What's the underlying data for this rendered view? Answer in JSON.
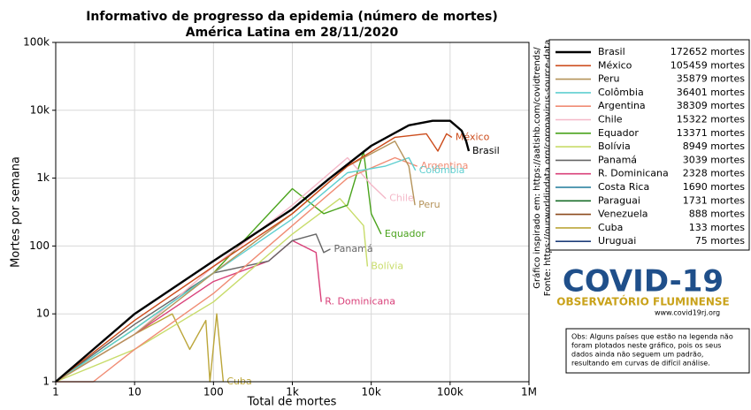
{
  "chart_data": {
    "type": "line",
    "title": "Informativo de progresso da epidemia (número de mortes)",
    "subtitle": "América Latina em 28/11/2020",
    "x_label": "Total de mortes",
    "y_label": "Mortes por semana",
    "log_x": true,
    "log_y": true,
    "grid": true,
    "xlim": [
      1,
      1000000
    ],
    "xticks": [
      1,
      10,
      100,
      {
        "value": 1000,
        "label": "1k"
      },
      {
        "value": 10000,
        "label": "10k"
      },
      {
        "value": 100000,
        "label": "100k"
      },
      {
        "value": 1000000,
        "label": "1M"
      }
    ],
    "ylim": [
      1,
      100000
    ],
    "yticks": [
      1,
      10,
      100,
      {
        "value": 1000,
        "label": "1k"
      },
      {
        "value": 10000,
        "label": "10k"
      },
      {
        "value": 100000,
        "label": "100k"
      }
    ],
    "series": [
      {
        "name": "Brasil",
        "total": "172652 mortes",
        "color": "#000000",
        "width": 2.4,
        "x": [
          1,
          10,
          100,
          1000,
          3000,
          10000,
          30000,
          60000,
          100000,
          140000,
          160000,
          172652
        ],
        "values": [
          1,
          10,
          60,
          350,
          1000,
          3000,
          6000,
          7000,
          7000,
          5000,
          3500,
          2500
        ]
      },
      {
        "name": "México",
        "total": "105459 mortes",
        "color": "#cc4c1c",
        "x": [
          1,
          10,
          100,
          1000,
          5000,
          20000,
          50000,
          70000,
          90000,
          105459
        ],
        "values": [
          1,
          8,
          50,
          300,
          1500,
          4000,
          4500,
          2500,
          4500,
          4000
        ]
      },
      {
        "name": "Peru",
        "total": "35879 mortes",
        "color": "#b5935a",
        "x": [
          1,
          10,
          100,
          1000,
          5000,
          20000,
          30000,
          35879
        ],
        "values": [
          1,
          5,
          40,
          300,
          1500,
          3500,
          1500,
          400
        ]
      },
      {
        "name": "Colômbia",
        "total": "36401 mortes",
        "color": "#5fcfd0",
        "x": [
          1,
          10,
          100,
          1000,
          5000,
          15000,
          30000,
          36401
        ],
        "values": [
          1,
          6,
          40,
          250,
          1200,
          1500,
          2000,
          1300
        ]
      },
      {
        "name": "Argentina",
        "total": "38309 mortes",
        "color": "#f08c74",
        "x": [
          1,
          3,
          10,
          100,
          1000,
          5000,
          20000,
          38309
        ],
        "values": [
          1,
          1,
          3,
          20,
          200,
          1000,
          2000,
          1500
        ]
      },
      {
        "name": "Chile",
        "total": "15322 mortes",
        "color": "#f4b8c8",
        "x": [
          1,
          10,
          100,
          1000,
          5000,
          10000,
          15322
        ],
        "values": [
          1,
          5,
          50,
          400,
          2000,
          800,
          500
        ]
      },
      {
        "name": "Equador",
        "total": "13371 mortes",
        "color": "#4aa31c",
        "x": [
          1,
          10,
          100,
          1000,
          2500,
          5000,
          8000,
          10000,
          13371
        ],
        "values": [
          1,
          6,
          40,
          700,
          300,
          400,
          2500,
          300,
          150
        ]
      },
      {
        "name": "Bolívia",
        "total": "8949 mortes",
        "color": "#c8dc6a",
        "x": [
          1,
          10,
          100,
          1000,
          4000,
          8000,
          8949
        ],
        "values": [
          1,
          3,
          15,
          150,
          500,
          200,
          50
        ]
      },
      {
        "name": "Panamá",
        "total": "3039 mortes",
        "color": "#666666",
        "x": [
          1,
          10,
          100,
          500,
          1000,
          2000,
          2500,
          3039
        ],
        "values": [
          1,
          7,
          40,
          60,
          120,
          150,
          80,
          90
        ]
      },
      {
        "name": "R. Dominicana",
        "total": "2328 mortes",
        "color": "#d9417a",
        "x": [
          1,
          10,
          100,
          500,
          1000,
          2000,
          2328
        ],
        "values": [
          1,
          5,
          30,
          60,
          120,
          80,
          15
        ]
      },
      {
        "name": "Costa Rica",
        "total": "1690 mortes",
        "color": "#1f7a9a"
      },
      {
        "name": "Paraguai",
        "total": "1731 mortes",
        "color": "#1a6e2a"
      },
      {
        "name": "Venezuela",
        "total": "888 mortes",
        "color": "#8b4a1c"
      },
      {
        "name": "Cuba",
        "total": "133 mortes",
        "color": "#bca63a",
        "x": [
          1,
          10,
          30,
          50,
          80,
          90,
          110,
          133
        ],
        "values": [
          1,
          5,
          10,
          3,
          8,
          1,
          10,
          1
        ]
      },
      {
        "name": "Uruguai",
        "total": "75 mortes",
        "color": "#1f3e7a"
      }
    ]
  },
  "side_note": {
    "credit": "Gráfico inspirado em: https://aatishb.com/covidtrends/",
    "source": "Fonte: https://ourworldindata.org/coronavirus-source-data"
  },
  "logo": {
    "title": "COVID-19",
    "subtitle": "OBSERVATÓRIO FLUMINENSE",
    "url": "www.covid19rj.org"
  },
  "note": {
    "lines": [
      "Obs: Alguns países que estão na legenda não",
      "foram plotados neste gráfico, pois os seus",
      "dados ainda não seguem um padrão,",
      "resultando em curvas de difícil análise."
    ]
  }
}
